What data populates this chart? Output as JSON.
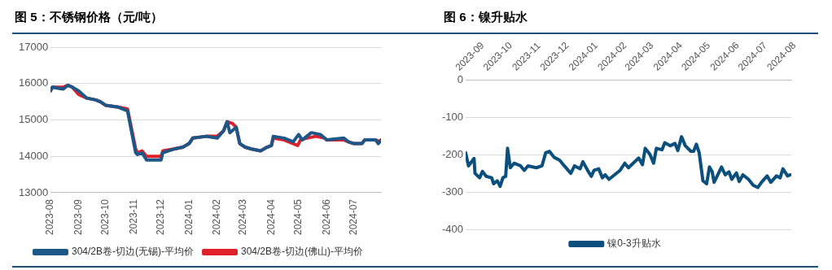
{
  "chart_data": [
    {
      "type": "line",
      "title": "图 5：不锈钢价格（元/吨）",
      "xlim": [
        "2023-08-01",
        "2024-07-31"
      ],
      "xticks": [
        "2023-08",
        "2023-09",
        "2023-10",
        "2023-11",
        "2023-12",
        "2024-01",
        "2024-02",
        "2024-03",
        "2024-04",
        "2024-05",
        "2024-06",
        "2024-07"
      ],
      "ylim": [
        13000,
        17000
      ],
      "yticks": [
        13000,
        14000,
        15000,
        16000,
        17000
      ],
      "grid": "y",
      "legend": "bottom",
      "marker": "none",
      "series": [
        {
          "name": "304/2B卷-切边(无锡)-平均价",
          "color": "#1d5787",
          "x": [
            "2023-08-01",
            "2023-08-03",
            "2023-08-15",
            "2023-08-20",
            "2023-08-25",
            "2023-09-01",
            "2023-09-10",
            "2023-09-20",
            "2023-09-25",
            "2023-10-01",
            "2023-10-15",
            "2023-10-25",
            "2023-11-03",
            "2023-11-05",
            "2023-11-10",
            "2023-11-15",
            "2023-12-01",
            "2023-12-03",
            "2023-12-15",
            "2023-12-25",
            "2024-01-01",
            "2024-01-05",
            "2024-01-20",
            "2024-02-01",
            "2024-02-08",
            "2024-02-12",
            "2024-02-15",
            "2024-02-22",
            "2024-02-26",
            "2024-03-03",
            "2024-03-10",
            "2024-03-20",
            "2024-03-27",
            "2024-04-01",
            "2024-04-03",
            "2024-04-15",
            "2024-04-25",
            "2024-05-01",
            "2024-05-05",
            "2024-05-15",
            "2024-05-25",
            "2024-06-01",
            "2024-06-20",
            "2024-06-25",
            "2024-07-01",
            "2024-07-10",
            "2024-07-13",
            "2024-07-25",
            "2024-07-28",
            "2024-07-31"
          ],
          "values": [
            15800,
            15900,
            15850,
            15950,
            15900,
            15800,
            15600,
            15550,
            15500,
            15400,
            15350,
            15250,
            14100,
            14050,
            14100,
            13900,
            13900,
            14100,
            14200,
            14250,
            14350,
            14500,
            14550,
            14500,
            14700,
            14950,
            14650,
            14800,
            14350,
            14250,
            14200,
            14150,
            14250,
            14300,
            14550,
            14500,
            14400,
            14600,
            14450,
            14650,
            14600,
            14450,
            14500,
            14400,
            14350,
            14350,
            14450,
            14450,
            14350,
            14450
          ]
        },
        {
          "name": "304/2B卷-切边(佛山)-平均价",
          "color": "#e0202a",
          "x": [
            "2023-08-01",
            "2023-08-03",
            "2023-08-15",
            "2023-08-20",
            "2023-08-25",
            "2023-09-01",
            "2023-09-10",
            "2023-09-20",
            "2023-09-25",
            "2023-10-01",
            "2023-10-15",
            "2023-10-25",
            "2023-11-03",
            "2023-11-05",
            "2023-11-10",
            "2023-11-15",
            "2023-12-01",
            "2023-12-03",
            "2023-12-15",
            "2023-12-25",
            "2024-01-01",
            "2024-01-05",
            "2024-01-20",
            "2024-02-01",
            "2024-02-08",
            "2024-02-12",
            "2024-02-18",
            "2024-02-22",
            "2024-02-26",
            "2024-03-03",
            "2024-03-10",
            "2024-03-20",
            "2024-03-27",
            "2024-04-01",
            "2024-04-03",
            "2024-04-15",
            "2024-04-25",
            "2024-04-30",
            "2024-05-03",
            "2024-05-10",
            "2024-05-20",
            "2024-05-30",
            "2024-06-01",
            "2024-06-20",
            "2024-06-25",
            "2024-07-01",
            "2024-07-10",
            "2024-07-13",
            "2024-07-25",
            "2024-07-31"
          ],
          "values": [
            15800,
            15900,
            15900,
            15950,
            15900,
            15700,
            15600,
            15550,
            15500,
            15400,
            15350,
            15300,
            14200,
            14100,
            14150,
            14000,
            14000,
            14150,
            14200,
            14250,
            14350,
            14500,
            14550,
            14550,
            14700,
            14950,
            14900,
            14800,
            14350,
            14250,
            14200,
            14150,
            14250,
            14300,
            14500,
            14450,
            14350,
            14300,
            14450,
            14500,
            14550,
            14500,
            14450,
            14450,
            14400,
            14350,
            14350,
            14450,
            14450,
            14400
          ]
        }
      ]
    },
    {
      "type": "line",
      "title": "图 6：镍升贴水",
      "xlim": [
        "2023-09-01",
        "2024-08-16"
      ],
      "xticks": [
        "2023-09",
        "2023-10",
        "2023-11",
        "2023-12",
        "2024-01",
        "2024-02",
        "2024-03",
        "2024-04",
        "2024-05",
        "2024-06",
        "2024-07",
        "2024-08"
      ],
      "ylim": [
        -400,
        0
      ],
      "yticks": [
        -400,
        -300,
        -200,
        -100,
        0
      ],
      "grid": "y",
      "legend": "bottom",
      "marker": "none",
      "series": [
        {
          "name": "镍0-3升贴水",
          "color": "#0b4f7c",
          "x": [
            "2023-09-01",
            "2023-09-04",
            "2023-09-10",
            "2023-09-11",
            "2023-09-16",
            "2023-09-19",
            "2023-09-23",
            "2023-09-29",
            "2023-10-01",
            "2023-10-05",
            "2023-10-08",
            "2023-10-11",
            "2023-10-14",
            "2023-10-16",
            "2023-10-19",
            "2023-10-23",
            "2023-10-30",
            "2023-11-03",
            "2023-11-07",
            "2023-11-16",
            "2023-11-22",
            "2023-11-26",
            "2023-11-30",
            "2023-12-05",
            "2023-12-11",
            "2023-12-16",
            "2023-12-23",
            "2023-12-27",
            "2024-01-02",
            "2024-01-05",
            "2024-01-11",
            "2024-01-14",
            "2024-01-17",
            "2024-01-22",
            "2024-01-26",
            "2024-01-29",
            "2024-02-02",
            "2024-02-08",
            "2024-02-14",
            "2024-02-19",
            "2024-02-23",
            "2024-02-28",
            "2024-03-05",
            "2024-03-09",
            "2024-03-12",
            "2024-03-17",
            "2024-03-21",
            "2024-03-24",
            "2024-03-30",
            "2024-04-02",
            "2024-04-08",
            "2024-04-13",
            "2024-04-16",
            "2024-04-20",
            "2024-04-24",
            "2024-04-30",
            "2024-05-03",
            "2024-05-06",
            "2024-05-09",
            "2024-05-13",
            "2024-05-17",
            "2024-05-20",
            "2024-05-23",
            "2024-05-25",
            "2024-05-29",
            "2024-06-02",
            "2024-06-06",
            "2024-06-10",
            "2024-06-13",
            "2024-06-18",
            "2024-06-21",
            "2024-06-25",
            "2024-07-01",
            "2024-07-06",
            "2024-07-11",
            "2024-07-15",
            "2024-07-21",
            "2024-07-25",
            "2024-07-31",
            "2024-08-04",
            "2024-08-07",
            "2024-08-12",
            "2024-08-15"
          ],
          "values": [
            -195,
            -230,
            -210,
            -250,
            -262,
            -245,
            -258,
            -262,
            -278,
            -270,
            -285,
            -262,
            -258,
            -183,
            -235,
            -223,
            -230,
            -242,
            -230,
            -235,
            -230,
            -195,
            -191,
            -207,
            -215,
            -230,
            -250,
            -230,
            -238,
            -219,
            -246,
            -258,
            -242,
            -238,
            -262,
            -254,
            -266,
            -254,
            -242,
            -223,
            -235,
            -223,
            -209,
            -227,
            -183,
            -199,
            -223,
            -183,
            -187,
            -168,
            -176,
            -170,
            -189,
            -152,
            -176,
            -191,
            -191,
            -172,
            -195,
            -270,
            -278,
            -233,
            -246,
            -274,
            -254,
            -233,
            -254,
            -246,
            -266,
            -249,
            -272,
            -254,
            -266,
            -282,
            -288,
            -274,
            -257,
            -274,
            -257,
            -262,
            -238,
            -257,
            -254
          ]
        }
      ]
    }
  ]
}
